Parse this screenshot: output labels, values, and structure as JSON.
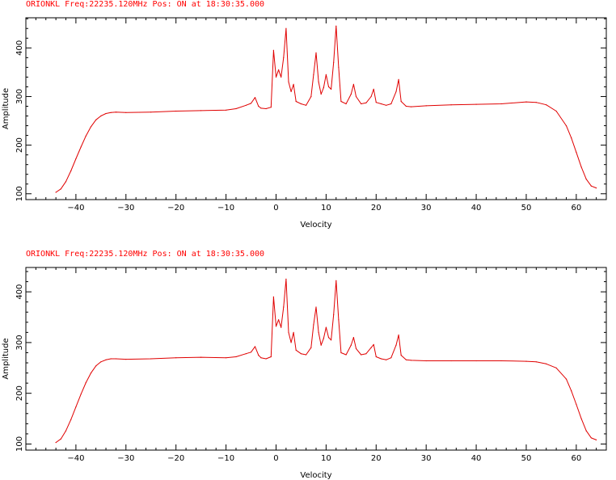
{
  "chart_data": [
    {
      "type": "line",
      "title": "ORIONKL Freq:22235.120MHz Pos: ON  at 18:30:35.000",
      "xlabel": "Velocity",
      "ylabel": "Amplitude",
      "xlim": [
        -50,
        66
      ],
      "ylim": [
        88,
        462
      ],
      "xticks": [
        -40,
        -30,
        -20,
        -10,
        0,
        10,
        20,
        30,
        40,
        50,
        60
      ],
      "yticks": [
        100,
        200,
        300,
        400
      ],
      "line_color": "#e00000",
      "series": [
        {
          "x": [
            -44,
            -43,
            -42,
            -41,
            -40,
            -39,
            -38,
            -37,
            -36,
            -35,
            -34,
            -33,
            -32,
            -30,
            -25,
            -20,
            -15,
            -10,
            -8,
            -6,
            -5,
            -4.2,
            -3.5,
            -3,
            -2,
            -1,
            -0.5,
            0,
            0.5,
            1,
            1.5,
            2,
            2.5,
            3,
            3.5,
            4,
            5,
            6,
            7,
            7.5,
            8,
            8.5,
            9,
            9.5,
            10,
            10.5,
            11,
            11.5,
            12,
            12.5,
            13,
            14,
            15,
            15.5,
            16,
            17,
            18,
            19,
            19.5,
            20,
            21,
            22,
            23,
            24,
            24.5,
            25,
            26,
            27,
            30,
            35,
            40,
            45,
            50,
            52,
            54,
            56,
            58,
            59,
            60,
            61,
            62,
            63,
            64
          ],
          "y": [
            103,
            110,
            125,
            147,
            172,
            196,
            219,
            238,
            252,
            260,
            265,
            267,
            268,
            267,
            268,
            270,
            271,
            272,
            275,
            282,
            286,
            298,
            280,
            276,
            275,
            278,
            395,
            340,
            355,
            340,
            380,
            440,
            330,
            310,
            325,
            290,
            285,
            282,
            300,
            345,
            390,
            330,
            305,
            318,
            345,
            320,
            315,
            370,
            445,
            360,
            290,
            285,
            305,
            325,
            300,
            285,
            287,
            300,
            315,
            288,
            285,
            282,
            285,
            310,
            335,
            290,
            280,
            279,
            281,
            283,
            284,
            285,
            289,
            288,
            283,
            270,
            240,
            215,
            185,
            155,
            130,
            116,
            112
          ]
        }
      ]
    },
    {
      "type": "line",
      "title": "ORIONKL Freq:22235.120MHz Pos: ON  at 18:30:35.000",
      "xlabel": "Velocity",
      "ylabel": "Amplitude",
      "xlim": [
        -50,
        66
      ],
      "ylim": [
        88,
        448
      ],
      "xticks": [
        -40,
        -30,
        -20,
        -10,
        0,
        10,
        20,
        30,
        40,
        50,
        60
      ],
      "yticks": [
        100,
        200,
        300,
        400
      ],
      "line_color": "#e00000",
      "series": [
        {
          "x": [
            -44,
            -43,
            -42,
            -41,
            -40,
            -39,
            -38,
            -37,
            -36,
            -35,
            -34,
            -33,
            -32,
            -30,
            -25,
            -20,
            -15,
            -10,
            -8,
            -6,
            -5,
            -4.2,
            -3.5,
            -3,
            -2,
            -1,
            -0.5,
            0,
            0.5,
            1,
            1.5,
            2,
            2.5,
            3,
            3.5,
            4,
            5,
            6,
            7,
            7.5,
            8,
            8.5,
            9,
            9.5,
            10,
            10.5,
            11,
            11.5,
            12,
            12.5,
            13,
            14,
            15,
            15.5,
            16,
            17,
            18,
            19,
            19.5,
            20,
            21,
            22,
            23,
            24,
            24.5,
            25,
            26,
            27,
            30,
            35,
            40,
            45,
            50,
            52,
            54,
            56,
            58,
            59,
            60,
            61,
            62,
            63,
            64
          ],
          "y": [
            103,
            110,
            126,
            148,
            173,
            198,
            221,
            240,
            254,
            262,
            266,
            268,
            268,
            267,
            268,
            270,
            271,
            270,
            272,
            278,
            281,
            292,
            275,
            270,
            268,
            272,
            390,
            332,
            345,
            330,
            370,
            425,
            320,
            300,
            320,
            285,
            278,
            276,
            290,
            335,
            370,
            320,
            295,
            308,
            330,
            310,
            305,
            355,
            422,
            345,
            280,
            276,
            295,
            310,
            288,
            276,
            278,
            290,
            296,
            272,
            268,
            266,
            270,
            295,
            315,
            275,
            266,
            265,
            264,
            264,
            264,
            264,
            263,
            262,
            258,
            250,
            228,
            205,
            178,
            150,
            126,
            112,
            108
          ]
        }
      ]
    }
  ]
}
